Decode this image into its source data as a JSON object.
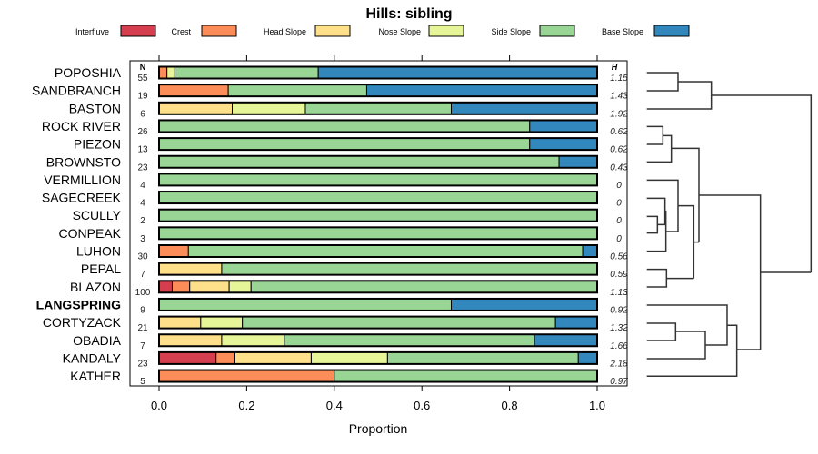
{
  "chart_data": {
    "type": "bar",
    "stacked": true,
    "orientation": "horizontal",
    "title": "Hills: sibling",
    "xlabel": "Proportion",
    "xlim": [
      0,
      1
    ],
    "xticks": [
      "0.0",
      "0.2",
      "0.4",
      "0.6",
      "0.8",
      "1.0"
    ],
    "n_header": "N",
    "h_header": "H",
    "legend_position": "top",
    "series": [
      {
        "name": "Interfluve",
        "color": "#D53E4F"
      },
      {
        "name": "Crest",
        "color": "#FC8D59"
      },
      {
        "name": "Head Slope",
        "color": "#FEE08B"
      },
      {
        "name": "Nose Slope",
        "color": "#E6F598"
      },
      {
        "name": "Side Slope",
        "color": "#99D594"
      },
      {
        "name": "Base Slope",
        "color": "#3288BD"
      }
    ],
    "rows": [
      {
        "name": "POPOSHIA",
        "n": "55",
        "h": "1.15",
        "values": [
          0,
          0.018,
          0,
          0.018,
          0.327,
          0.636
        ]
      },
      {
        "name": "SANDBRANCH",
        "n": "19",
        "h": "1.43",
        "values": [
          0,
          0.158,
          0,
          0,
          0.316,
          0.526
        ]
      },
      {
        "name": "BASTON",
        "n": "6",
        "h": "1.92",
        "values": [
          0,
          0,
          0.167,
          0.167,
          0.333,
          0.333
        ]
      },
      {
        "name": "ROCK RIVER",
        "n": "26",
        "h": "0.62",
        "values": [
          0,
          0,
          0,
          0,
          0.846,
          0.154
        ]
      },
      {
        "name": "PIEZON",
        "n": "13",
        "h": "0.62",
        "values": [
          0,
          0,
          0,
          0,
          0.846,
          0.154
        ]
      },
      {
        "name": "BROWNSTO",
        "n": "23",
        "h": "0.43",
        "values": [
          0,
          0,
          0,
          0,
          0.913,
          0.087
        ]
      },
      {
        "name": "VERMILLION",
        "n": "4",
        "h": "0",
        "values": [
          0,
          0,
          0,
          0,
          1,
          0
        ]
      },
      {
        "name": "SAGECREEK",
        "n": "4",
        "h": "0",
        "values": [
          0,
          0,
          0,
          0,
          1,
          0
        ]
      },
      {
        "name": "SCULLY",
        "n": "2",
        "h": "0",
        "values": [
          0,
          0,
          0,
          0,
          1,
          0
        ]
      },
      {
        "name": "CONPEAK",
        "n": "3",
        "h": "0",
        "values": [
          0,
          0,
          0,
          0,
          1,
          0
        ]
      },
      {
        "name": "LUHON",
        "n": "30",
        "h": "0.56",
        "values": [
          0,
          0.067,
          0,
          0,
          0.9,
          0.033
        ]
      },
      {
        "name": "PEPAL",
        "n": "7",
        "h": "0.59",
        "values": [
          0,
          0,
          0.143,
          0,
          0.857,
          0
        ]
      },
      {
        "name": "BLAZON",
        "n": "100",
        "h": "1.13",
        "values": [
          0.03,
          0.04,
          0.09,
          0.05,
          0.79,
          0
        ]
      },
      {
        "name": "LANGSPRING",
        "n": "9",
        "h": "0.92",
        "values": [
          0,
          0,
          0,
          0,
          0.667,
          0.333
        ],
        "bold": true
      },
      {
        "name": "CORTYZACK",
        "n": "21",
        "h": "1.32",
        "values": [
          0,
          0,
          0.095,
          0.095,
          0.714,
          0.095
        ]
      },
      {
        "name": "OBADIA",
        "n": "7",
        "h": "1.66",
        "values": [
          0,
          0,
          0.143,
          0.143,
          0.571,
          0.143
        ]
      },
      {
        "name": "KANDALY",
        "n": "23",
        "h": "2.18",
        "values": [
          0.13,
          0.043,
          0.174,
          0.174,
          0.435,
          0.043
        ]
      },
      {
        "name": "KATHER",
        "n": "5",
        "h": "0.97",
        "values": [
          0,
          0.4,
          0,
          0,
          0.6,
          0
        ]
      }
    ]
  }
}
